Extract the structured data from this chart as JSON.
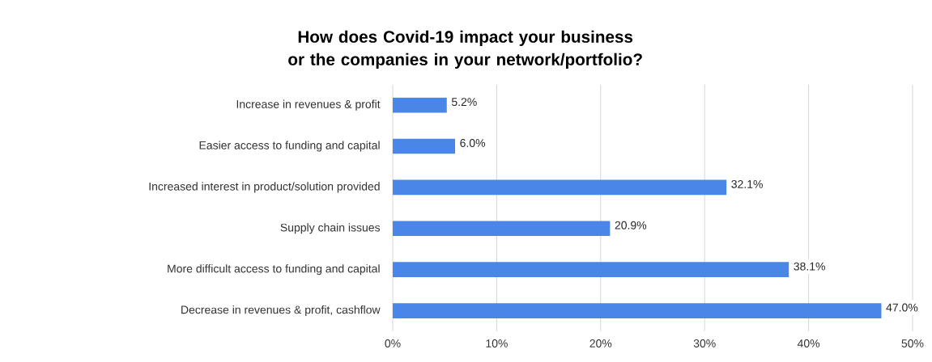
{
  "chart_data": {
    "type": "bar",
    "orientation": "horizontal",
    "title": "How does Covid-19 impact your business or the companies in your network/portfolio?",
    "categories": [
      "Increase in revenues & profit",
      "Easier access to funding and capital",
      "Increased interest in product/solution provided",
      "Supply chain issues",
      "More difficult access to funding and capital",
      "Decrease in revenues & profit, cashflow"
    ],
    "values": [
      5.2,
      6.0,
      32.1,
      20.9,
      38.1,
      47.0
    ],
    "value_labels": [
      "5.2%",
      "6.0%",
      "32.1%",
      "20.9%",
      "38.1%",
      "47.0%"
    ],
    "color": "#4a86e8",
    "xlim": [
      0,
      50
    ],
    "xticks": [
      {
        "value": 0,
        "label": "0%"
      },
      {
        "value": 10,
        "label": "10%"
      },
      {
        "value": 20,
        "label": "20%"
      },
      {
        "value": 30,
        "label": "30%"
      },
      {
        "value": 40,
        "label": "40%"
      },
      {
        "value": 50,
        "label": "50%"
      }
    ],
    "grid": "x"
  }
}
